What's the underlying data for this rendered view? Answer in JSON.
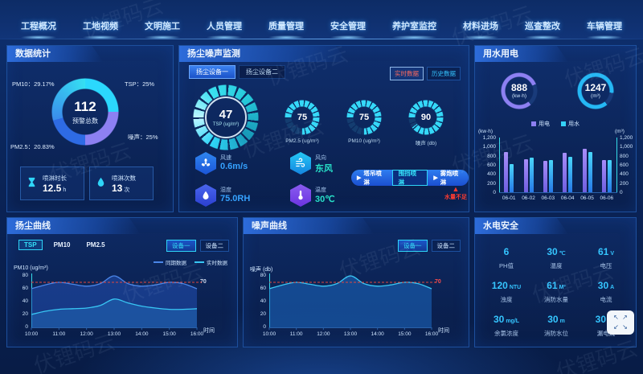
{
  "watermark": {
    "text": "伏锂码云"
  },
  "colors": {
    "accent_cyan": "#2fd5f8",
    "accent_purple": "#8d80f2",
    "alarm_red": "#ff3b30",
    "threshold_red": "#e0483e"
  },
  "nav": {
    "items": [
      "工程概况",
      "工地视频",
      "文明施工",
      "人员管理",
      "质量管理",
      "安全管理",
      "养护室监控",
      "材料进场",
      "巡查整改",
      "车辆管理"
    ]
  },
  "stats": {
    "title": "数据统计",
    "donut": {
      "center_value": "112",
      "center_label": "预警总数",
      "segments": [
        {
          "name": "TSP",
          "text": "TSP：25%",
          "value": 25,
          "color": "#2bd8fd"
        },
        {
          "name": "噪声",
          "text": "噪声：25%",
          "value": 25,
          "color": "#8d80f2"
        },
        {
          "name": "PM2.5",
          "text": "PM2.5：20.83%",
          "value": 20.83,
          "color": "#2e6be4"
        },
        {
          "name": "PM10",
          "text": "PM10：29.17%",
          "value": 29.17,
          "color": "#3a8cec",
          "color2": "#35e0f2"
        }
      ]
    },
    "cards": [
      {
        "icon": "hourglass",
        "label": "喷淋时长",
        "value": "12.5",
        "unit": "h"
      },
      {
        "icon": "droplet",
        "label": "喷淋次数",
        "value": "13",
        "unit": "次"
      }
    ]
  },
  "monitor": {
    "title": "扬尘噪声监测",
    "tabs": [
      {
        "label": "扬尘设备一",
        "active": true
      },
      {
        "label": "扬尘设备二",
        "active": false
      }
    ],
    "modes": [
      {
        "label": "实时数据",
        "active": true
      },
      {
        "label": "历史数据",
        "active": false
      }
    ],
    "main_gauge": {
      "value": "47",
      "label": "TSP",
      "unit": "(ug/m³)"
    },
    "sub_gauges": [
      {
        "value": "75",
        "label": "PM2.5",
        "unit": "(ug/m³)",
        "pct": 0.75
      },
      {
        "value": "75",
        "label": "PM10",
        "unit": "(ug/m³)",
        "pct": 0.75
      },
      {
        "value": "90",
        "label": "噪声",
        "unit": "(db)",
        "pct": 0.9
      }
    ],
    "env": [
      {
        "icon": "fan",
        "label": "风速",
        "value": "0.6m/s",
        "value_color": "#35a2ff",
        "icon_colors": [
          "#2f86f0",
          "#1b55d8"
        ]
      },
      {
        "icon": "wind",
        "label": "风向",
        "value": "东风",
        "value_color": "#27e0c8",
        "icon_colors": [
          "#25c8f5",
          "#1585e0"
        ]
      },
      {
        "icon": "humidity",
        "label": "湿度",
        "value": "75.0RH",
        "value_color": "#35a2ff",
        "icon_colors": [
          "#4a66ee",
          "#2b3fd0"
        ]
      },
      {
        "icon": "thermo",
        "label": "温度",
        "value": "30℃",
        "value_color": "#27e0c8",
        "icon_colors": [
          "#8a5cf0",
          "#6b34e0"
        ]
      }
    ],
    "sprays": [
      {
        "label": "塔吊喷淋",
        "play": true,
        "active": false
      },
      {
        "label": "围挡喷淋",
        "play": false,
        "active": true
      },
      {
        "label": "雾炮喷淋",
        "play": true,
        "active": false
      }
    ],
    "warning": "水量不足"
  },
  "water_power": {
    "title": "用水用电",
    "rings": [
      {
        "value": "888",
        "unit": "(kw·h)",
        "color": "#8d80f2",
        "arc": 0.8
      },
      {
        "value": "1247",
        "unit": "(m³)",
        "color": "#25b8f5",
        "arc": 0.88
      }
    ],
    "legend": [
      {
        "label": "用电",
        "color": "#8d80f2"
      },
      {
        "label": "用水",
        "color": "#35d2f8"
      }
    ],
    "chart": {
      "type": "bar",
      "left_axis_label": "(kw·h)",
      "right_axis_label": "(m³)",
      "y_ticks": [
        "1,200",
        "1,000",
        "800",
        "600",
        "400",
        "200",
        "0"
      ],
      "y_max": 1200,
      "categories": [
        "06-01",
        "06-02",
        "06-03",
        "06-04",
        "06-05",
        "06-06"
      ],
      "series": [
        {
          "name": "用电",
          "color": "#a78df8",
          "color2": "#6f5fe0",
          "values": [
            880,
            730,
            680,
            870,
            950,
            700
          ]
        },
        {
          "name": "用水",
          "color": "#49d6fa",
          "color2": "#2779e8",
          "values": [
            620,
            760,
            700,
            770,
            890,
            700
          ]
        }
      ]
    }
  },
  "dust_curve": {
    "title": "扬尘曲线",
    "tabs": [
      {
        "label": "TSP",
        "active": true
      },
      {
        "label": "PM10",
        "active": false
      },
      {
        "label": "PM2.5",
        "active": false
      }
    ],
    "devices": [
      {
        "label": "设备一",
        "active": true
      },
      {
        "label": "设备二",
        "active": false
      }
    ],
    "legend": [
      {
        "label": "同期数据",
        "color": "#4a86e8"
      },
      {
        "label": "实时数据",
        "color": "#38c6f4"
      }
    ],
    "chart": {
      "type": "line",
      "y_axis_label": "PM10 (ug/m³)",
      "x_axis_label": "时间",
      "y_ticks": [
        "80",
        "60",
        "40",
        "20",
        "0"
      ],
      "y_max": 80,
      "x": [
        "10:00",
        "11:00",
        "12:00",
        "13:00",
        "14:00",
        "15:00",
        "16:00"
      ],
      "threshold": {
        "value": 70,
        "label": "70",
        "label_color": "#d0dcf0"
      },
      "series": [
        {
          "name": "同期数据",
          "color": "#4a86e8",
          "fill": "rgba(35,80,180,0.55)",
          "values": [
            60,
            66,
            70,
            67,
            64,
            68,
            80,
            68,
            64,
            66,
            70,
            68,
            60
          ]
        },
        {
          "name": "实时数据",
          "color": "#38c6f4",
          "fill": "rgba(40,140,220,0.30)",
          "values": [
            20,
            25,
            28,
            29,
            30,
            34,
            44,
            38,
            33,
            30,
            28,
            28,
            29
          ]
        }
      ]
    }
  },
  "noise_curve": {
    "title": "噪声曲线",
    "devices": [
      {
        "label": "设备一",
        "active": true
      },
      {
        "label": "设备二",
        "active": false
      }
    ],
    "chart": {
      "type": "line",
      "y_axis_label": "噪声 (db)",
      "x_axis_label": "时间",
      "y_ticks": [
        "80",
        "60",
        "40",
        "20",
        "0"
      ],
      "y_max": 80,
      "x": [
        "10:00",
        "11:00",
        "12:00",
        "13:00",
        "14:00",
        "15:00",
        "16:00"
      ],
      "threshold": {
        "value": 70,
        "label": "70",
        "label_color": "#ff4d4d"
      },
      "series": [
        {
          "name": "噪声",
          "color": "#38c6f4",
          "fill": "rgba(30,105,195,0.55)",
          "values": [
            60,
            66,
            70,
            67,
            64,
            68,
            80,
            68,
            64,
            66,
            70,
            68,
            60
          ]
        }
      ]
    }
  },
  "safety": {
    "title": "水电安全",
    "metrics": [
      {
        "value": "6",
        "unit": "",
        "label": "PH值"
      },
      {
        "value": "30",
        "unit": "℃",
        "label": "温度"
      },
      {
        "value": "61",
        "unit": "V",
        "label": "电压"
      },
      {
        "value": "120",
        "unit": "NTU",
        "label": "浊度"
      },
      {
        "value": "61",
        "unit": "M³",
        "label": "消防水量"
      },
      {
        "value": "30",
        "unit": "A",
        "label": "电流"
      },
      {
        "value": "30",
        "unit": "mg/L",
        "label": "余氯浓度"
      },
      {
        "value": "30",
        "unit": "m",
        "label": "消防水位"
      },
      {
        "value": "30",
        "unit": "mA",
        "label": "漏电流"
      }
    ]
  },
  "expand_button": {
    "icon": "expand-arrows-icon",
    "arrows": [
      "↖",
      "↗",
      "↙",
      "↘"
    ]
  }
}
